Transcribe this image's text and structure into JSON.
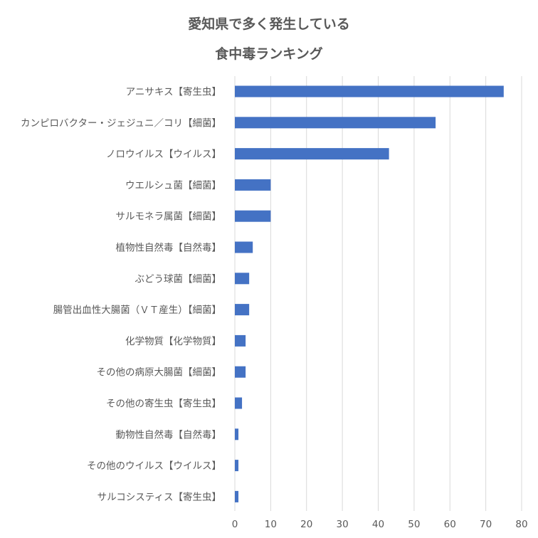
{
  "chart_data": {
    "type": "bar",
    "orientation": "horizontal",
    "title_lines": [
      "愛知県で多く発生している",
      "食中毒ランキング"
    ],
    "categories": [
      "アニサキス【寄生虫】",
      "カンピロバクター・ジェジュニ／コリ【細菌】",
      "ノロウイルス【ウイルス】",
      "ウエルシュ菌【細菌】",
      "サルモネラ属菌【細菌】",
      "植物性自然毒【自然毒】",
      "ぶどう球菌【細菌】",
      "腸管出血性大腸菌（ＶＴ産生）【細菌】",
      "化学物質【化学物質】",
      "その他の病原大腸菌【細菌】",
      "その他の寄生虫【寄生虫】",
      "動物性自然毒【自然毒】",
      "その他のウイルス【ウイルス】",
      "サルコシスティス【寄生虫】"
    ],
    "values": [
      75,
      56,
      43,
      10,
      10,
      5,
      4,
      4,
      3,
      3,
      2,
      1,
      1,
      1
    ],
    "xlim": [
      0,
      80
    ],
    "xticks": [
      0,
      10,
      20,
      30,
      40,
      50,
      60,
      70,
      80
    ],
    "grid": "vertical",
    "legend": "none",
    "bar_color": "#4472C4",
    "grid_color": "#D9D9D9",
    "text_color": "#595959"
  }
}
